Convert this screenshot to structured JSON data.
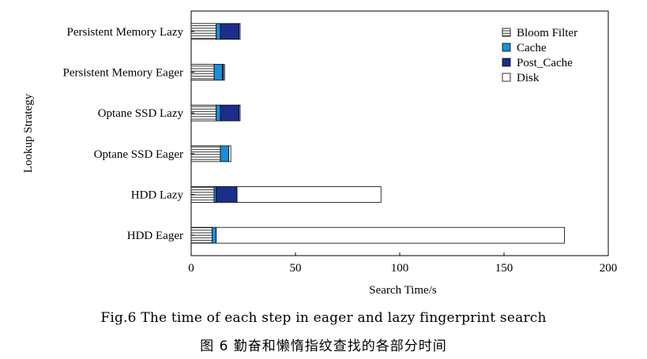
{
  "chart_data": {
    "type": "bar",
    "orientation": "horizontal",
    "stacked": true,
    "categories": [
      "Persistent Memory Lazy",
      "Persistent Memory Eager",
      "Optane SSD Lazy",
      "Optane SSD Eager",
      "HDD Lazy",
      "HDD Eager"
    ],
    "series": [
      {
        "name": "Bloom Filter",
        "color": "#ffffff",
        "pattern": "horizontal-lines",
        "values": [
          12,
          11,
          12,
          14,
          11,
          10
        ]
      },
      {
        "name": "Cache",
        "color": "#1a8fd6",
        "values": [
          2,
          4,
          2,
          4,
          1,
          2
        ]
      },
      {
        "name": "Post_Cache",
        "color": "#1a2e8c",
        "values": [
          9,
          0.5,
          9,
          0,
          10,
          0
        ]
      },
      {
        "name": "Disk",
        "color": "#ffffff",
        "values": [
          0.5,
          0.5,
          0.5,
          1,
          69,
          167
        ]
      }
    ],
    "title": "",
    "xlabel": "Search Time/s",
    "ylabel": "Lookup Strategy",
    "xlim": [
      0,
      200
    ],
    "xticks": [
      0,
      50,
      100,
      150,
      200
    ],
    "grid": false,
    "legend": "top-right"
  },
  "caption": {
    "en": "Fig.6   The time of each step in eager and lazy fingerprint search",
    "zh": "图 6   勤奋和懒惰指纹查找的各部分时间"
  }
}
